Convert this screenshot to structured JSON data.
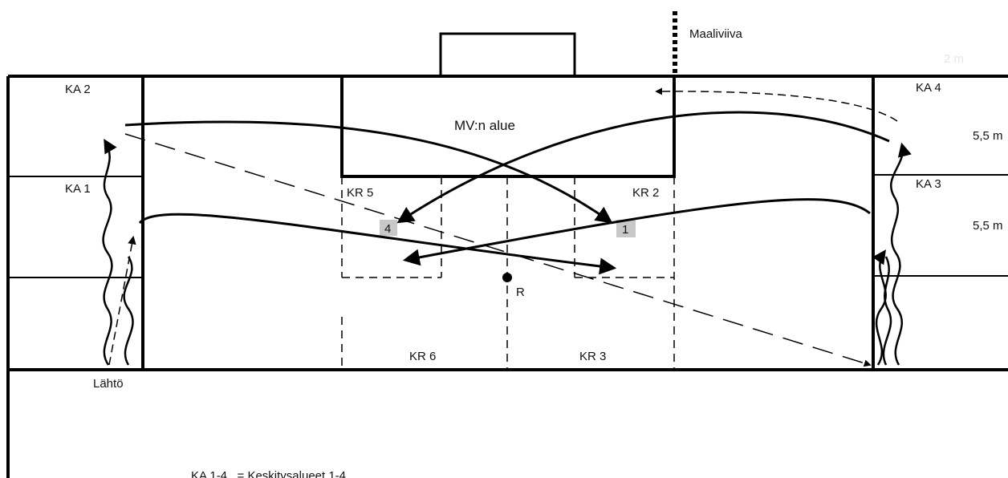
{
  "diagram": {
    "goal_line_label": "Maaliviiva",
    "goal_area_label": "MV:n alue",
    "zones": {
      "ka1": "KA 1",
      "ka2": "KA 2",
      "ka3": "KA 3",
      "ka4": "KA 4"
    },
    "regions": {
      "kr2": "KR 2",
      "kr3": "KR 3",
      "kr5": "KR 5",
      "kr6": "KR 6"
    },
    "markers": {
      "one": "1",
      "four": "4"
    },
    "referee_label": "R",
    "start_label": "Lähtö",
    "dimensions": {
      "upper": "5,5 m",
      "lower": "5,5 m",
      "width": "2 m"
    },
    "legend_line": "KA 1-4   = Keskitysalueet 1-4"
  }
}
